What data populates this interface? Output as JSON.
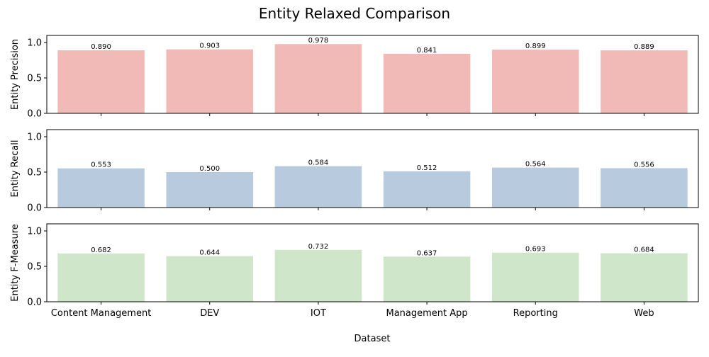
{
  "chart_data": {
    "type": "bar",
    "title": "Entity Relaxed Comparison",
    "xlabel": "Dataset",
    "categories": [
      "Content Management",
      "DEV",
      "IOT",
      "Management App",
      "Reporting",
      "Web"
    ],
    "ylim": [
      0,
      1.1
    ],
    "yticks": [
      "0.0",
      "0.5",
      "1.0"
    ],
    "panels": [
      {
        "ylabel": "Entity Precision",
        "color": "#f1bab6",
        "values": [
          0.89,
          0.903,
          0.978,
          0.841,
          0.899,
          0.889
        ],
        "value_labels": [
          "0.890",
          "0.903",
          "0.978",
          "0.841",
          "0.899",
          "0.889"
        ]
      },
      {
        "ylabel": "Entity Recall",
        "color": "#b8cbde",
        "values": [
          0.553,
          0.5,
          0.584,
          0.512,
          0.564,
          0.556
        ],
        "value_labels": [
          "0.553",
          "0.500",
          "0.584",
          "0.512",
          "0.564",
          "0.556"
        ]
      },
      {
        "ylabel": "Entity F-Measure",
        "color": "#cfe6ca",
        "values": [
          0.682,
          0.644,
          0.732,
          0.637,
          0.693,
          0.684
        ],
        "value_labels": [
          "0.682",
          "0.644",
          "0.732",
          "0.637",
          "0.693",
          "0.684"
        ]
      }
    ],
    "grid": false,
    "legend": "none"
  }
}
